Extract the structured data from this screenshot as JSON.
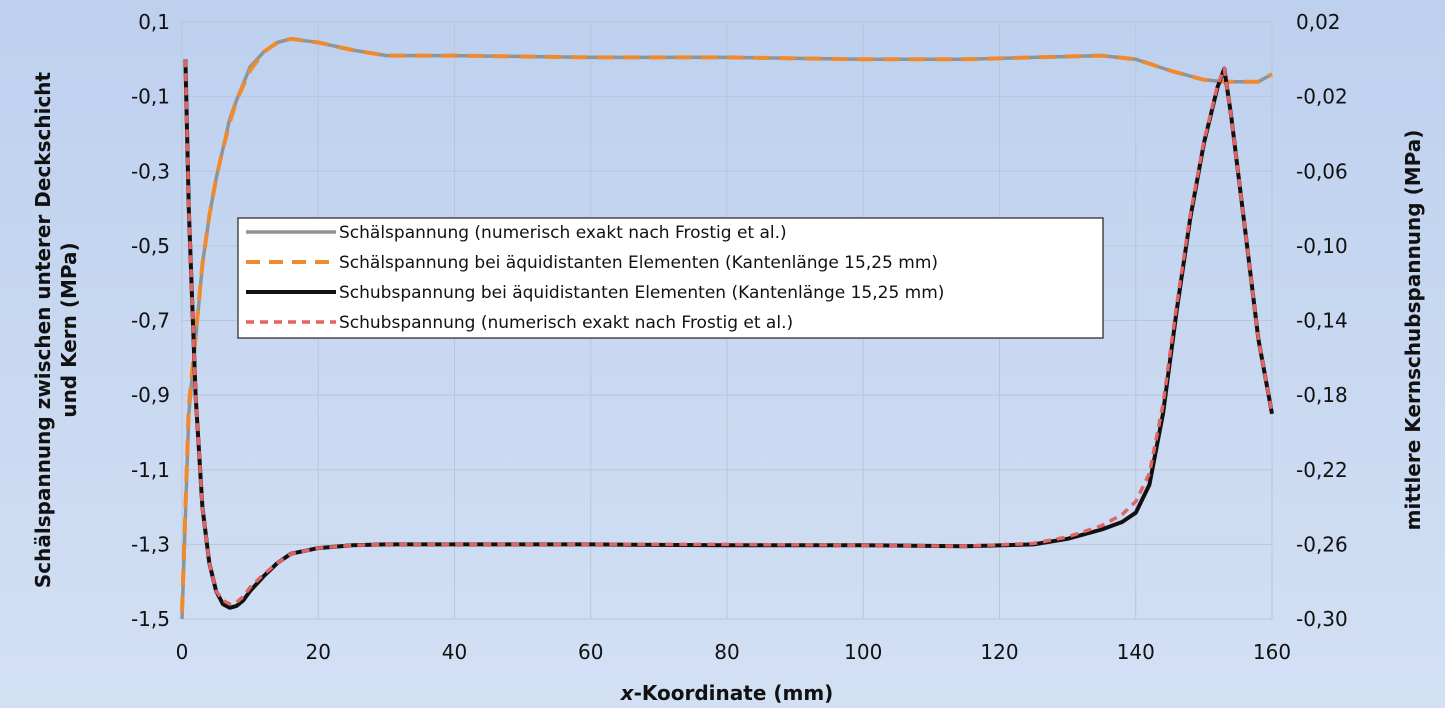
{
  "chart_data": {
    "type": "line",
    "title": "",
    "xlabel_italic": "x",
    "xlabel_rest": "-Koordinate (mm)",
    "ylabel_lines": [
      "Schälspannung zwischen unterer Deckschicht",
      "und Kern (MPa)"
    ],
    "y2label": "mittlere Kernschubspannung (MPa)",
    "xlim": [
      0,
      160
    ],
    "ylim": [
      -1.5,
      0.1
    ],
    "y2lim": [
      -0.3,
      0.02
    ],
    "grid": true,
    "legend_position": "center-left",
    "x_ticks": [
      "0",
      "20",
      "40",
      "60",
      "80",
      "100",
      "120",
      "140",
      "160"
    ],
    "y_ticks": [
      "0,1",
      "-0,1",
      "-0,3",
      "-0,5",
      "-0,7",
      "-0,9",
      "-1,1",
      "-1,3",
      "-1,5"
    ],
    "y2_ticks": [
      "0,02",
      "-0,02",
      "-0,06",
      "-0,10",
      "-0,14",
      "-0,18",
      "-0,22",
      "-0,26",
      "-0,30"
    ],
    "series": [
      {
        "name": "Schälspannung (numerisch exakt nach Frostig et al.)",
        "axis": "left",
        "color": "#8f9499",
        "dash": "solid",
        "x": [
          0,
          1,
          2,
          3,
          4,
          5,
          6,
          7,
          8,
          10,
          12,
          14,
          16,
          18,
          20,
          25,
          30,
          40,
          60,
          80,
          100,
          115,
          125,
          135,
          140,
          145,
          150,
          153,
          156,
          158,
          160
        ],
        "y": [
          -1.5,
          -0.95,
          -0.75,
          -0.55,
          -0.42,
          -0.32,
          -0.24,
          -0.16,
          -0.11,
          -0.02,
          0.02,
          0.045,
          0.055,
          0.05,
          0.045,
          0.025,
          0.01,
          0.01,
          0.005,
          0.005,
          0.0,
          0.0,
          0.005,
          0.01,
          0.0,
          -0.03,
          -0.055,
          -0.06,
          -0.06,
          -0.06,
          -0.04
        ]
      },
      {
        "name": "Schälspannung bei äquidistanten Elementen (Kantenlänge 15,25 mm)",
        "axis": "left",
        "color": "#f08a2e",
        "dash": "long",
        "x": [
          0,
          1,
          2,
          3,
          4,
          5,
          6,
          7,
          8,
          10,
          12,
          14,
          16,
          18,
          20,
          25,
          30,
          40,
          60,
          80,
          100,
          115,
          125,
          135,
          140,
          145,
          150,
          153,
          156,
          158,
          160
        ],
        "y": [
          -1.48,
          -0.93,
          -0.74,
          -0.55,
          -0.42,
          -0.32,
          -0.24,
          -0.17,
          -0.11,
          -0.03,
          0.02,
          0.045,
          0.055,
          0.05,
          0.045,
          0.025,
          0.01,
          0.01,
          0.005,
          0.005,
          0.0,
          0.0,
          0.005,
          0.01,
          0.0,
          -0.03,
          -0.055,
          -0.06,
          -0.06,
          -0.06,
          -0.04
        ]
      },
      {
        "name": "Schubspannung bei äquidistanten Elementen (Kantenlänge 15,25 mm)",
        "axis": "right",
        "color": "#111111",
        "dash": "solid",
        "x": [
          0.5,
          1,
          2,
          3,
          4,
          5,
          6,
          7,
          8,
          9,
          10,
          12,
          14,
          16,
          20,
          25,
          30,
          40,
          60,
          80,
          100,
          115,
          125,
          130,
          135,
          138,
          140,
          142,
          144,
          146,
          148,
          150,
          152,
          153,
          154,
          156,
          158,
          160
        ],
        "y": [
          0.0,
          -0.08,
          -0.18,
          -0.24,
          -0.27,
          -0.285,
          -0.292,
          -0.294,
          -0.293,
          -0.29,
          -0.285,
          -0.277,
          -0.27,
          -0.265,
          -0.262,
          -0.2605,
          -0.26,
          -0.26,
          -0.26,
          -0.2605,
          -0.2605,
          -0.261,
          -0.26,
          -0.257,
          -0.252,
          -0.248,
          -0.243,
          -0.228,
          -0.19,
          -0.135,
          -0.085,
          -0.045,
          -0.015,
          -0.005,
          -0.03,
          -0.09,
          -0.15,
          -0.19
        ]
      },
      {
        "name": "Schubspannung (numerisch exakt nach Frostig et al.)",
        "axis": "right",
        "color": "#e06464",
        "dash": "short",
        "x": [
          0.5,
          1,
          2,
          3,
          4,
          5,
          6,
          7,
          8,
          9,
          10,
          12,
          14,
          16,
          20,
          25,
          30,
          40,
          60,
          80,
          100,
          115,
          125,
          130,
          135,
          138,
          140,
          142,
          144,
          146,
          148,
          150,
          152,
          153,
          154,
          156,
          158,
          160
        ],
        "y": [
          0.0,
          -0.08,
          -0.18,
          -0.24,
          -0.27,
          -0.285,
          -0.29,
          -0.292,
          -0.291,
          -0.288,
          -0.283,
          -0.276,
          -0.27,
          -0.265,
          -0.262,
          -0.2605,
          -0.26,
          -0.26,
          -0.26,
          -0.26,
          -0.2605,
          -0.261,
          -0.2595,
          -0.256,
          -0.25,
          -0.244,
          -0.237,
          -0.222,
          -0.185,
          -0.132,
          -0.083,
          -0.044,
          -0.014,
          -0.005,
          -0.03,
          -0.09,
          -0.15,
          -0.19
        ]
      }
    ]
  }
}
